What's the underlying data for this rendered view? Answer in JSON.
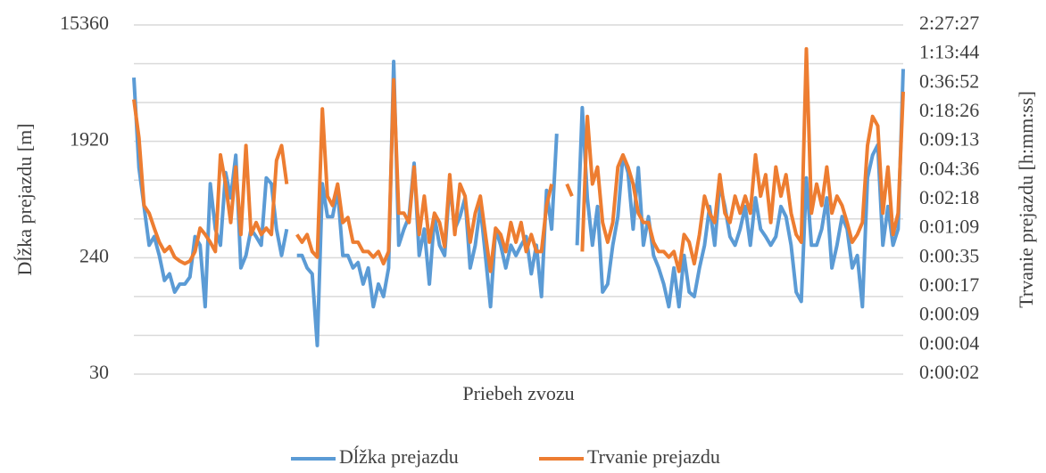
{
  "chart_data": {
    "type": "line",
    "xlabel": "Priebeh zvozu",
    "ylabel": "Dĺžka prejazdu [m]",
    "y2label": "Trvanie prejazdu [h:mm:ss]",
    "log_scale": true,
    "ylim": [
      30,
      15360
    ],
    "yticks": [
      30,
      240,
      1920,
      15360
    ],
    "grid_lines": [
      30,
      60,
      120,
      240,
      480,
      960,
      1920,
      3840,
      7680,
      15360
    ],
    "y2lim": [
      2.16,
      8847.36
    ],
    "y2ticks": [
      {
        "value": 2.16,
        "label": "0:00:02"
      },
      {
        "value": 4.32,
        "label": "0:00:04"
      },
      {
        "value": 8.64,
        "label": "0:00:09"
      },
      {
        "value": 17.28,
        "label": "0:00:17"
      },
      {
        "value": 34.56,
        "label": "0:00:35"
      },
      {
        "value": 69.12,
        "label": "0:01:09"
      },
      {
        "value": 138.24,
        "label": "0:02:18"
      },
      {
        "value": 276.48,
        "label": "0:04:36"
      },
      {
        "value": 552.96,
        "label": "0:09:13"
      },
      {
        "value": 1105.92,
        "label": "0:18:26"
      },
      {
        "value": 2211.84,
        "label": "0:36:52"
      },
      {
        "value": 4423.68,
        "label": "1:13:44"
      },
      {
        "value": 8847.36,
        "label": "2:27:27"
      }
    ],
    "legend": "bottom",
    "series": [
      {
        "name": "Dĺžka prejazdu",
        "color": "#5b9bd5",
        "values": [
          6000,
          1200,
          600,
          300,
          350,
          250,
          160,
          180,
          130,
          150,
          150,
          170,
          350,
          300,
          100,
          900,
          400,
          300,
          1100,
          700,
          1500,
          200,
          250,
          400,
          350,
          300,
          1000,
          900,
          400,
          250,
          400,
          null,
          250,
          250,
          200,
          180,
          50,
          900,
          500,
          500,
          800,
          250,
          250,
          200,
          220,
          150,
          200,
          100,
          150,
          120,
          200,
          8000,
          300,
          400,
          500,
          1300,
          250,
          400,
          150,
          500,
          300,
          250,
          900,
          400,
          500,
          700,
          200,
          300,
          600,
          250,
          100,
          400,
          300,
          200,
          300,
          250,
          300,
          350,
          180,
          300,
          120,
          800,
          400,
          2200,
          null,
          null,
          null,
          300,
          3500,
          700,
          300,
          600,
          130,
          150,
          300,
          500,
          1500,
          1100,
          400,
          1200,
          300,
          500,
          250,
          200,
          150,
          100,
          200,
          100,
          250,
          130,
          120,
          200,
          300,
          600,
          300,
          900,
          600,
          350,
          300,
          400,
          600,
          300,
          700,
          400,
          350,
          300,
          350,
          600,
          500,
          300,
          130,
          110,
          1000,
          300,
          300,
          400,
          700,
          200,
          300,
          500,
          400,
          200,
          250,
          100,
          1000,
          1500,
          1800,
          300,
          600,
          300,
          400,
          7000
        ]
      },
      {
        "name": "Trvanie prejazdu",
        "color": "#ed7d31",
        "axis": "y2",
        "values": [
          1500,
          600,
          120,
          100,
          70,
          50,
          40,
          45,
          35,
          32,
          30,
          32,
          40,
          70,
          60,
          50,
          40,
          400,
          200,
          80,
          300,
          60,
          500,
          60,
          80,
          60,
          70,
          60,
          350,
          500,
          200,
          null,
          60,
          50,
          60,
          40,
          35,
          1200,
          150,
          120,
          200,
          80,
          90,
          50,
          50,
          40,
          40,
          35,
          40,
          30,
          40,
          2400,
          100,
          100,
          80,
          300,
          60,
          150,
          50,
          100,
          80,
          45,
          250,
          60,
          200,
          150,
          50,
          100,
          150,
          60,
          25,
          70,
          60,
          40,
          80,
          50,
          80,
          40,
          60,
          40,
          40,
          120,
          200,
          null,
          null,
          200,
          150,
          null,
          40,
          1000,
          200,
          300,
          80,
          50,
          80,
          300,
          400,
          300,
          200,
          100,
          80,
          80,
          50,
          40,
          40,
          35,
          40,
          25,
          60,
          50,
          30,
          60,
          150,
          100,
          80,
          250,
          100,
          80,
          150,
          100,
          150,
          100,
          400,
          150,
          250,
          80,
          300,
          150,
          250,
          100,
          60,
          50,
          5000,
          100,
          200,
          120,
          300,
          100,
          150,
          120,
          80,
          50,
          60,
          80,
          500,
          1000,
          800,
          100,
          300,
          60,
          100,
          1800
        ]
      }
    ]
  }
}
